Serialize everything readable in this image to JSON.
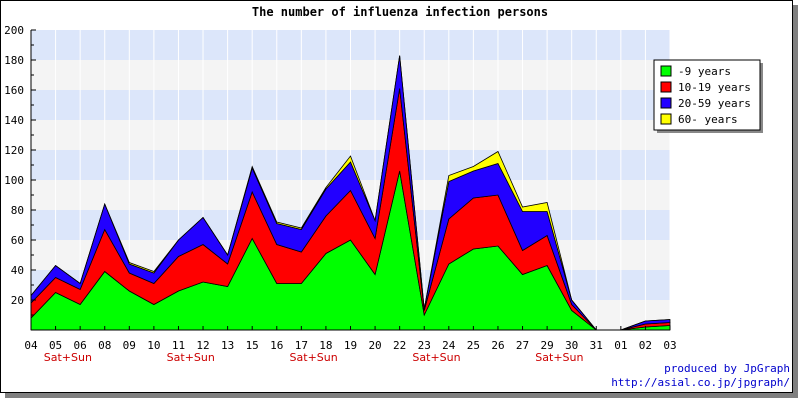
{
  "chart_data": {
    "type": "area",
    "stacked": true,
    "title": "The number of influenza infection persons",
    "categories": [
      "04",
      "05",
      "06",
      "08",
      "09",
      "10",
      "11",
      "12",
      "13",
      "15",
      "16",
      "17",
      "18",
      "19",
      "20",
      "22",
      "23",
      "24",
      "25",
      "26",
      "27",
      "29",
      "30",
      "31",
      "01",
      "02",
      "03"
    ],
    "weekend_marker": "Sat+Sun",
    "weekend_after_index": [
      1,
      6,
      11,
      16,
      21
    ],
    "ylim": [
      0,
      200
    ],
    "yticks": [
      20,
      40,
      60,
      80,
      100,
      120,
      140,
      160,
      180,
      200
    ],
    "grid": true,
    "legend_position": "top-right",
    "series": [
      {
        "name": "-9 years",
        "color": "#00ff00",
        "values": [
          8,
          25,
          17,
          39,
          26,
          17,
          26,
          32,
          29,
          61,
          31,
          31,
          51,
          60,
          37,
          106,
          10,
          44,
          54,
          56,
          37,
          43,
          13,
          0,
          0,
          2,
          3
        ]
      },
      {
        "name": "10-19 years",
        "color": "#ff0000",
        "values": [
          10,
          10,
          10,
          28,
          12,
          14,
          23,
          25,
          15,
          31,
          26,
          21,
          25,
          33,
          24,
          55,
          3,
          30,
          34,
          34,
          16,
          20,
          4,
          0,
          0,
          2,
          2
        ]
      },
      {
        "name": "20-59 years",
        "color": "#2200ff",
        "values": [
          5,
          8,
          4,
          17,
          6,
          7,
          11,
          18,
          6,
          16,
          14,
          15,
          18,
          19,
          12,
          22,
          1,
          25,
          18,
          21,
          26,
          16,
          3,
          0,
          0,
          2,
          2
        ]
      },
      {
        "name": "60- years",
        "color": "#ffff00",
        "values": [
          0,
          0,
          0,
          0,
          1,
          1,
          0,
          0,
          0,
          1,
          1,
          1,
          1,
          4,
          0,
          0,
          0,
          4,
          3,
          8,
          3,
          6,
          0,
          0,
          0,
          0,
          0
        ]
      }
    ]
  },
  "credit": {
    "line1": "produced by JpGraph",
    "line2": "http://asial.co.jp/jpgraph/"
  }
}
